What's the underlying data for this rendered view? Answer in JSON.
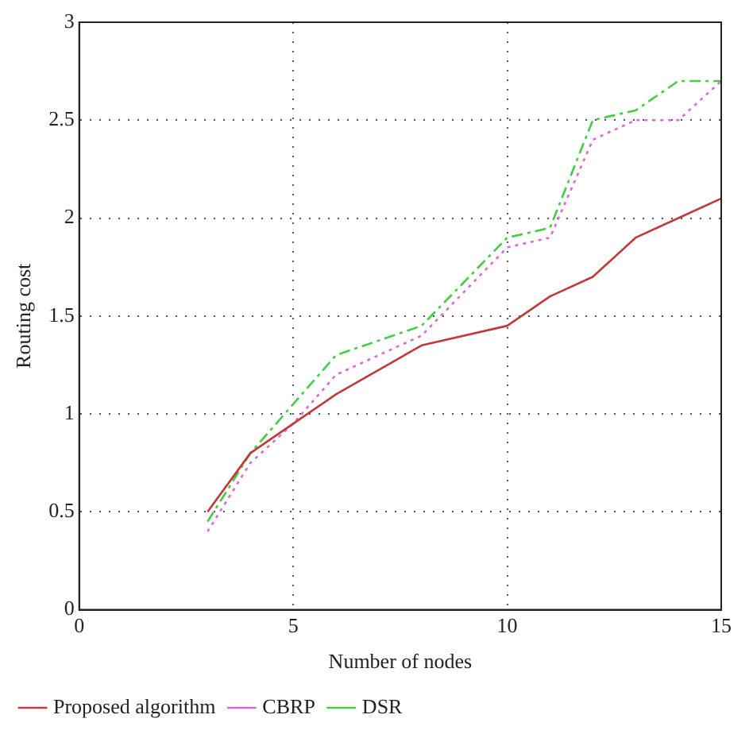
{
  "chart_data": {
    "type": "line",
    "xlabel": "Number of nodes",
    "ylabel": "Routing cost",
    "x": [
      3,
      4,
      5,
      6,
      8,
      10,
      11,
      12,
      13,
      14,
      15
    ],
    "series": [
      {
        "name": "Proposed algorithm",
        "color": "#c0393b",
        "line_style": "solid",
        "values": [
          0.5,
          0.8,
          0.95,
          1.1,
          1.35,
          1.45,
          1.6,
          1.7,
          1.9,
          2.0,
          2.1
        ]
      },
      {
        "name": "CBRP",
        "color": "#d86ad8",
        "line_style": "dotted",
        "values": [
          0.4,
          0.75,
          0.95,
          1.2,
          1.4,
          1.85,
          1.9,
          2.4,
          2.5,
          2.5,
          2.7
        ]
      },
      {
        "name": "DSR",
        "color": "#44cc44",
        "line_style": "dashdot",
        "values": [
          0.45,
          0.8,
          1.05,
          1.3,
          1.45,
          1.9,
          1.95,
          2.5,
          2.55,
          2.7,
          2.7
        ]
      }
    ],
    "xlim": [
      0,
      15
    ],
    "xticks": [
      0,
      5,
      10,
      15
    ],
    "ylim": [
      0,
      3
    ],
    "yticks": [
      0,
      0.5,
      1,
      1.5,
      2,
      2.5,
      3
    ],
    "grid": true,
    "legend": "bottom",
    "marker": "none"
  }
}
